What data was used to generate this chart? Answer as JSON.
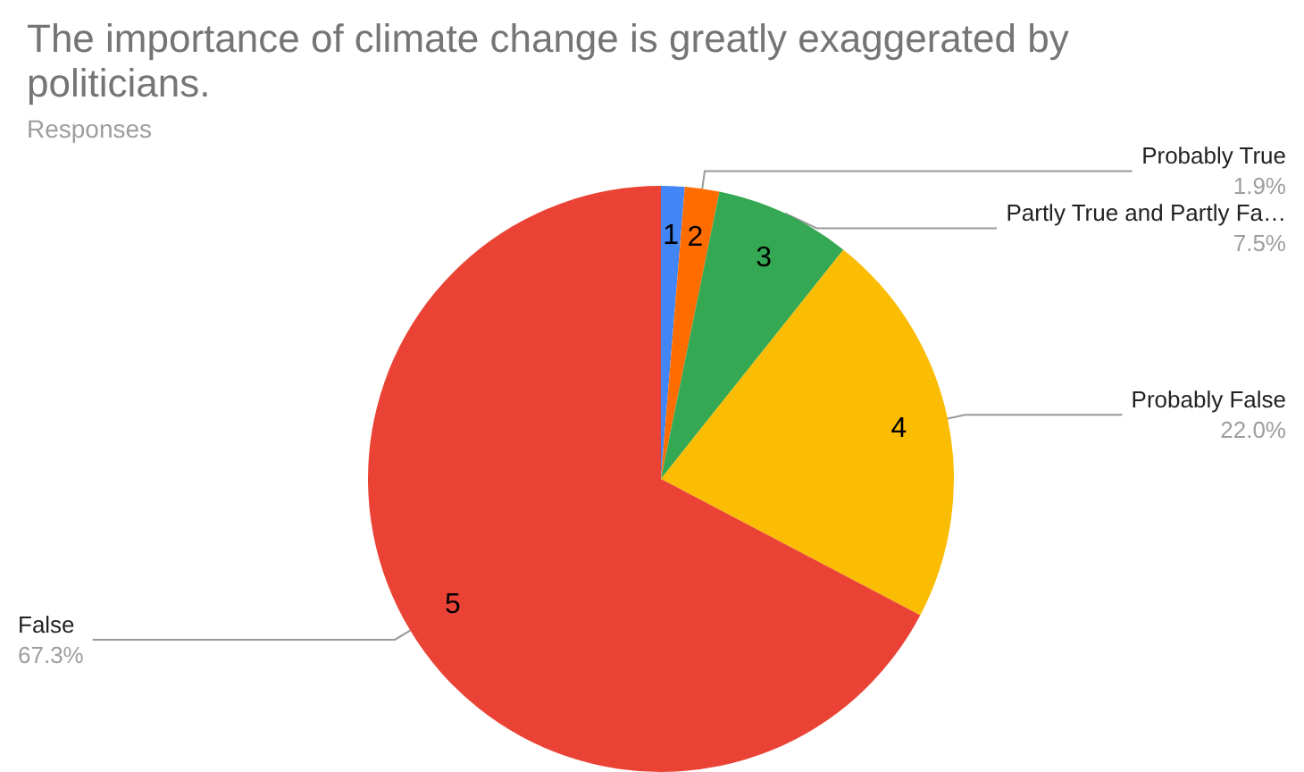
{
  "chart_data": {
    "type": "pie",
    "title": "The importance of climate change is greatly exaggerated by politicians.",
    "subtitle": "Responses",
    "categories": [
      null,
      "Probably True",
      "Partly True and Partly Fa…",
      "Probably False",
      "False"
    ],
    "values": [
      1.3,
      1.9,
      7.5,
      22.0,
      67.3
    ],
    "colors": [
      "#4285f4",
      "#ff6d01",
      "#34a853",
      "#fbbc04",
      "#ea4335"
    ],
    "value_labels": [
      null,
      "1.9%",
      "7.5%",
      "22.0%",
      "67.3%"
    ],
    "annotations": [
      "1",
      "2",
      "3",
      "4",
      "5"
    ],
    "legend": false
  }
}
